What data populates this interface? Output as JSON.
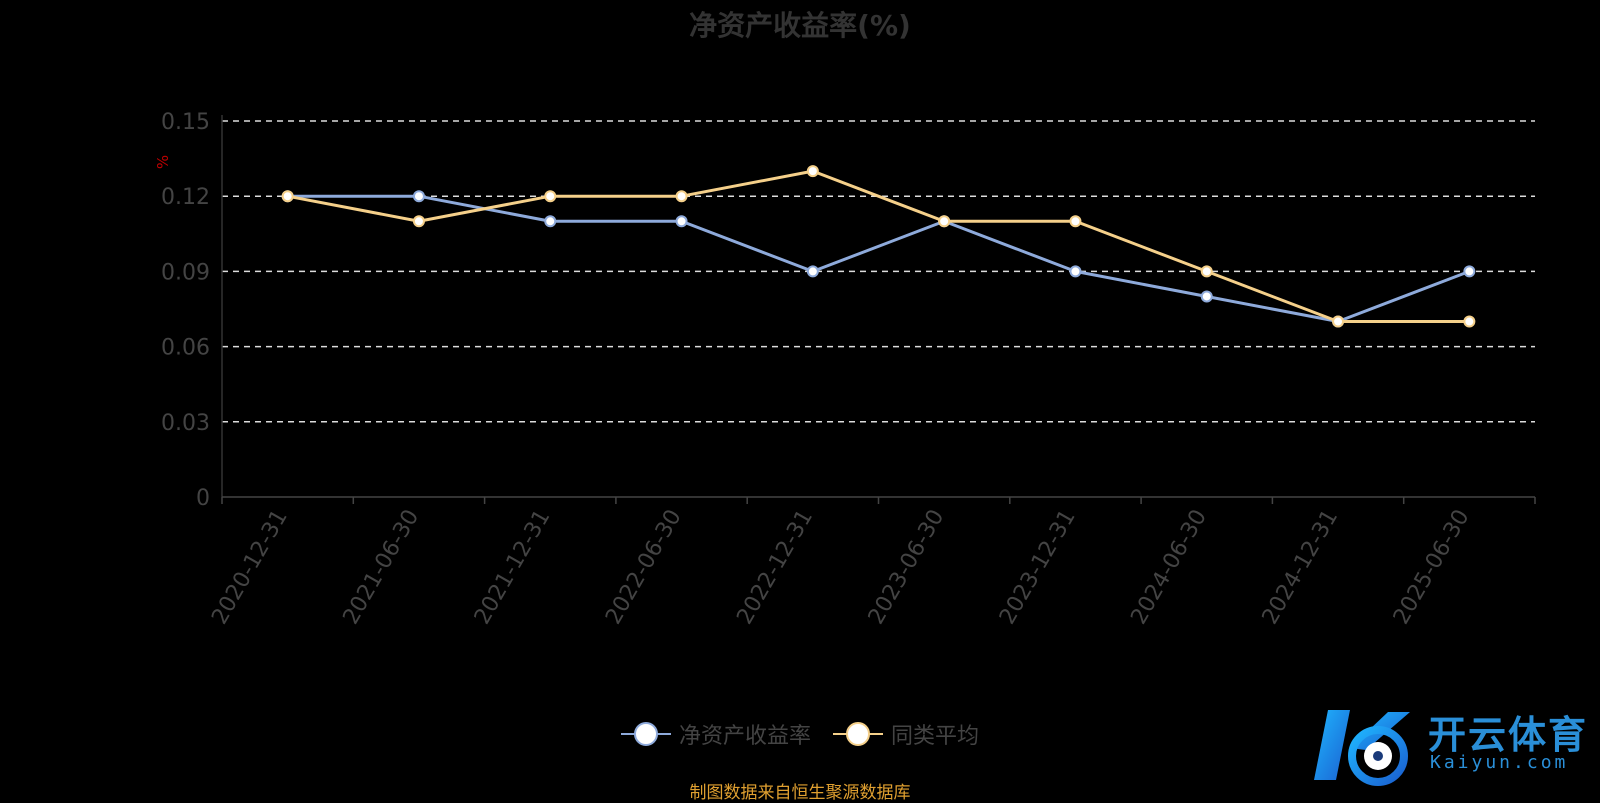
{
  "chart_data": {
    "type": "line",
    "title": "净资产收益率(%)",
    "ylabel": "%",
    "categories": [
      "2020-12-31",
      "2021-06-30",
      "2021-12-31",
      "2022-06-30",
      "2022-12-31",
      "2023-06-30",
      "2023-12-31",
      "2024-06-30",
      "2024-12-31",
      "2025-06-30"
    ],
    "series": [
      {
        "name": "净资产收益率",
        "color": "#8eaadb",
        "values": [
          0.12,
          0.12,
          0.11,
          0.11,
          0.09,
          0.11,
          0.09,
          0.08,
          0.07,
          0.09
        ]
      },
      {
        "name": "同类平均",
        "color": "#f5d08a",
        "values": [
          0.12,
          0.11,
          0.12,
          0.12,
          0.13,
          0.11,
          0.11,
          0.09,
          0.07,
          0.07
        ]
      }
    ],
    "yticks": [
      "0",
      "0.03",
      "0.06",
      "0.09",
      "0.12",
      "0.15"
    ],
    "ylim": [
      0,
      0.15
    ],
    "grid": true,
    "legend_position": "bottom"
  },
  "source_note": "制图数据来自恒生聚源数据库",
  "watermark": {
    "text": "开云体育",
    "sub": "Kaiyun.com"
  }
}
